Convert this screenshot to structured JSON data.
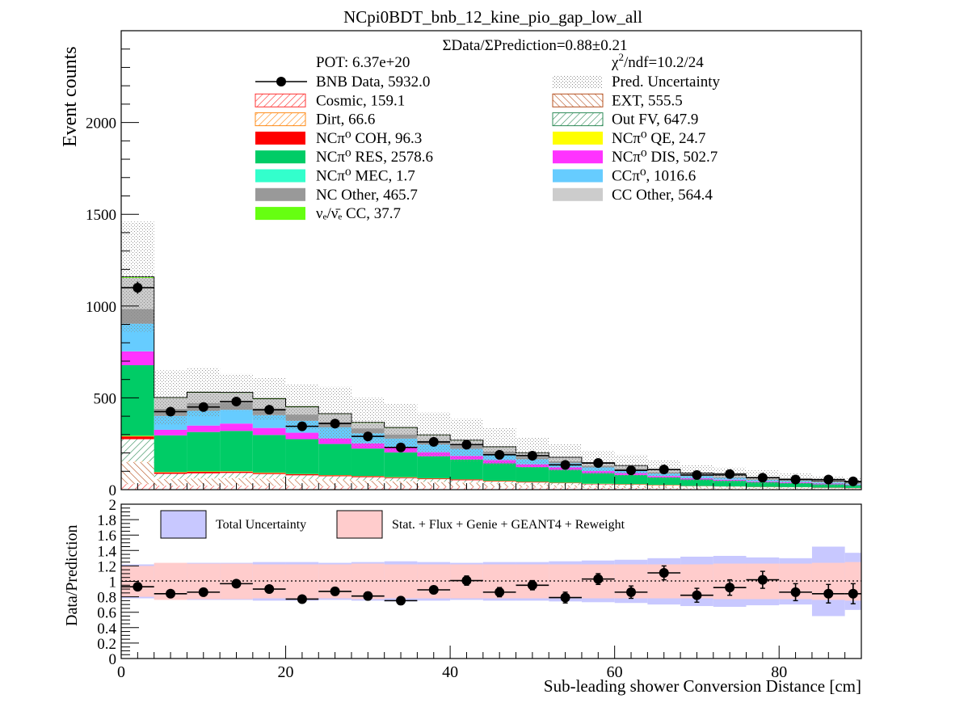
{
  "colors": {
    "cosmic": "#ff3333",
    "ext": "#b5501e",
    "dirt": "#ff8c1a",
    "outfv": "#2e8b57",
    "coh": "#ff0000",
    "qe": "#ffff00",
    "res": "#00cc66",
    "dis": "#ff33ff",
    "mec": "#33ffcc",
    "ccpi0": "#66ccff",
    "ncother": "#999999",
    "ccother": "#cccccc",
    "nuecc": "#66ff11",
    "total_unc": "#c8c8ff",
    "stat_unc": "#ffcccc"
  },
  "chart_data": [
    {
      "type": "bar",
      "title": "NCpi0BDT_bnb_12_kine_pio_gap_low_all",
      "ylabel": "Event counts",
      "xlim": [
        0,
        90
      ],
      "ylim": [
        0,
        2500
      ],
      "yticks": [
        0,
        500,
        1000,
        1500,
        2000
      ],
      "ytick_labels": [
        "0",
        "500",
        "1000",
        "1500",
        "2000"
      ],
      "grid": false,
      "stacked": true,
      "bin_edges": [
        0,
        4,
        8,
        12,
        16,
        20,
        24,
        28,
        32,
        36,
        40,
        44,
        48,
        52,
        56,
        60,
        64,
        68,
        72,
        76,
        80,
        84,
        88,
        90
      ],
      "header_text": {
        "ratio": "ΣData/ΣPrediction=0.88±0.21",
        "pot": "POT: 6.37e+20",
        "chi2_prefix": "χ",
        "chi2_sup": "2",
        "chi2_rest": "/ndf=10.2/24"
      },
      "legend": {
        "placement": "top",
        "left": [
          {
            "key": "data",
            "label": "BNB Data, 5932.0",
            "style": "marker"
          },
          {
            "key": "cosmic",
            "label": "Cosmic, 159.1",
            "style": "hatch"
          },
          {
            "key": "dirt",
            "label": "Dirt, 66.6",
            "style": "hatch"
          },
          {
            "key": "coh",
            "label": "NCπ⁰ COH,  96.3",
            "style": "fill"
          },
          {
            "key": "res",
            "label": "NCπ⁰ RES,  2578.6",
            "style": "fill"
          },
          {
            "key": "mec",
            "label": "NCπ⁰ MEC,  1.7",
            "style": "fill"
          },
          {
            "key": "ncother",
            "label": "NC Other, 465.7",
            "style": "fill"
          },
          {
            "key": "nuecc",
            "label": "νₑ/ν̄ₑ CC, 37.7",
            "style": "fill"
          }
        ],
        "right": [
          {
            "key": "pred_unc",
            "label": "Pred. Uncertainty",
            "style": "dots"
          },
          {
            "key": "ext",
            "label": "EXT, 555.5",
            "style": "hatch"
          },
          {
            "key": "outfv",
            "label": "Out FV, 647.9",
            "style": "hatch"
          },
          {
            "key": "qe",
            "label": "NCπ⁰ QE,  24.7",
            "style": "fill"
          },
          {
            "key": "dis",
            "label": "NCπ⁰ DIS,  502.7",
            "style": "fill"
          },
          {
            "key": "ccpi0",
            "label": "CCπ⁰, 1016.6",
            "style": "fill"
          },
          {
            "key": "ccother",
            "label": "CC Other, 564.4",
            "style": "fill"
          }
        ]
      },
      "series": [
        {
          "key": "cosmic",
          "name": "Cosmic",
          "values": [
            30,
            22,
            22,
            22,
            21,
            20,
            19,
            18,
            17,
            16,
            15,
            13,
            12,
            11,
            10,
            9,
            8,
            7,
            6,
            5,
            5,
            4,
            3
          ]
        },
        {
          "key": "ext",
          "name": "EXT",
          "values": [
            120,
            35,
            38,
            40,
            38,
            35,
            33,
            30,
            28,
            25,
            22,
            18,
            15,
            13,
            11,
            10,
            8,
            6,
            5,
            4,
            3,
            2,
            2
          ]
        },
        {
          "key": "dirt",
          "name": "Dirt",
          "values": [
            5,
            4,
            4,
            4,
            4,
            3,
            3,
            3,
            3,
            3,
            3,
            3,
            3,
            3,
            2,
            2,
            2,
            2,
            2,
            2,
            2,
            2,
            1
          ]
        },
        {
          "key": "outfv",
          "name": "Out FV",
          "values": [
            120,
            25,
            25,
            25,
            22,
            20,
            18,
            17,
            15,
            13,
            11,
            10,
            9,
            8,
            6,
            6,
            5,
            4,
            4,
            3,
            3,
            2,
            2
          ]
        },
        {
          "key": "coh",
          "name": "NCπ⁰ COH",
          "values": [
            15,
            8,
            8,
            7,
            6,
            6,
            5,
            5,
            4,
            4,
            4,
            3,
            3,
            2,
            2,
            2,
            2,
            1,
            1,
            1,
            1,
            1,
            1
          ]
        },
        {
          "key": "qe",
          "name": "NCπ⁰ QE",
          "values": [
            3,
            2,
            2,
            2,
            2,
            1,
            1,
            1,
            1,
            1,
            1,
            1,
            1,
            1,
            1,
            1,
            1,
            0,
            0,
            0,
            0,
            0,
            0
          ]
        },
        {
          "key": "res",
          "name": "NCπ⁰ RES",
          "values": [
            385,
            200,
            215,
            220,
            205,
            190,
            170,
            150,
            135,
            120,
            108,
            95,
            80,
            70,
            58,
            50,
            40,
            35,
            30,
            25,
            22,
            18,
            15
          ]
        },
        {
          "key": "dis",
          "name": "NCπ⁰ DIS",
          "values": [
            75,
            30,
            35,
            40,
            38,
            35,
            30,
            28,
            25,
            22,
            20,
            18,
            15,
            13,
            11,
            10,
            8,
            7,
            6,
            5,
            4,
            4,
            3
          ]
        },
        {
          "key": "mec",
          "name": "NCπ⁰ MEC",
          "values": [
            1,
            0,
            0,
            0,
            0,
            0,
            0,
            0,
            0,
            0,
            0,
            0,
            0,
            0,
            0,
            0,
            0,
            0,
            0,
            0,
            0,
            0,
            0
          ]
        },
        {
          "key": "ccpi0",
          "name": "CCπ⁰",
          "values": [
            150,
            75,
            80,
            75,
            70,
            65,
            60,
            55,
            50,
            42,
            38,
            32,
            28,
            23,
            20,
            17,
            14,
            12,
            10,
            8,
            7,
            6,
            5
          ]
        },
        {
          "key": "ncother",
          "name": "NC Other",
          "values": [
            80,
            40,
            42,
            40,
            37,
            34,
            30,
            27,
            23,
            20,
            18,
            15,
            13,
            11,
            9,
            8,
            7,
            6,
            5,
            4,
            4,
            3,
            3
          ]
        },
        {
          "key": "ccother",
          "name": "CC Other",
          "values": [
            170,
            58,
            57,
            52,
            50,
            40,
            42,
            30,
            35,
            30,
            28,
            24,
            20,
            19,
            16,
            15,
            13,
            9,
            8,
            8,
            6,
            5,
            4
          ]
        },
        {
          "key": "nuecc",
          "name": "νₑ/ν̄ₑ CC",
          "values": [
            6,
            3,
            3,
            3,
            3,
            3,
            3,
            3,
            3,
            2,
            2,
            2,
            2,
            2,
            1,
            1,
            1,
            1,
            1,
            1,
            1,
            1,
            1
          ]
        }
      ],
      "pred_unc_top": [
        1460,
        650,
        665,
        630,
        610,
        575,
        560,
        500,
        470,
        420,
        385,
        335,
        285,
        250,
        210,
        190,
        160,
        135,
        120,
        105,
        90,
        75,
        65
      ],
      "data": {
        "name": "BNB Data",
        "x": [
          2,
          6,
          10,
          14,
          18,
          22,
          26,
          30,
          34,
          38,
          42,
          46,
          50,
          54,
          58,
          62,
          66,
          70,
          74,
          78,
          82,
          86,
          89
        ],
        "xerr": [
          2,
          2,
          2,
          2,
          2,
          2,
          2,
          2,
          2,
          2,
          2,
          2,
          2,
          2,
          2,
          2,
          2,
          2,
          2,
          2,
          2,
          2,
          1
        ],
        "y": [
          1100,
          425,
          450,
          480,
          435,
          345,
          360,
          290,
          230,
          260,
          245,
          190,
          185,
          135,
          145,
          105,
          110,
          80,
          85,
          65,
          55,
          55,
          45
        ],
        "yerr": [
          33,
          21,
          21,
          22,
          21,
          19,
          19,
          17,
          15,
          16,
          16,
          14,
          14,
          12,
          12,
          10,
          10,
          9,
          9,
          8,
          7,
          7,
          7
        ]
      }
    },
    {
      "type": "line",
      "xlabel": "Sub-leading shower Conversion Distance [cm]",
      "ylabel": "Data/Prediction",
      "xlim": [
        0,
        90
      ],
      "ylim": [
        0,
        2
      ],
      "xticks": [
        0,
        20,
        40,
        60,
        80
      ],
      "xtick_labels": [
        "0",
        "20",
        "40",
        "60",
        "80"
      ],
      "yticks": [
        0,
        0.2,
        0.4,
        0.6,
        0.8,
        1,
        1.2,
        1.4,
        1.6,
        1.8,
        2
      ],
      "ytick_labels": [
        "0",
        "0.2",
        "0.4",
        "0.6",
        "0.8",
        "1",
        "1.2",
        "1.4",
        "1.6",
        "1.8",
        "2"
      ],
      "grid": false,
      "legend": [
        {
          "key": "total_unc",
          "label": "Total Uncertainty"
        },
        {
          "key": "stat_unc",
          "label": "Stat. + Flux + Genie + GEANT4 + Reweight"
        }
      ],
      "bin_edges": [
        0,
        4,
        8,
        12,
        16,
        20,
        24,
        28,
        32,
        36,
        40,
        44,
        48,
        52,
        56,
        60,
        64,
        68,
        72,
        76,
        80,
        84,
        88,
        90
      ],
      "total_unc_half_width": [
        0.22,
        0.23,
        0.24,
        0.24,
        0.25,
        0.25,
        0.24,
        0.25,
        0.26,
        0.25,
        0.24,
        0.25,
        0.25,
        0.26,
        0.27,
        0.28,
        0.3,
        0.32,
        0.33,
        0.31,
        0.3,
        0.45,
        0.37
      ],
      "syst_unc_half_width": [
        0.2,
        0.24,
        0.23,
        0.23,
        0.22,
        0.22,
        0.22,
        0.23,
        0.22,
        0.22,
        0.22,
        0.22,
        0.22,
        0.22,
        0.22,
        0.22,
        0.22,
        0.22,
        0.23,
        0.23,
        0.23,
        0.24,
        0.25
      ],
      "reference_line": 1,
      "data": {
        "x": [
          2,
          6,
          10,
          14,
          18,
          22,
          26,
          30,
          34,
          38,
          42,
          46,
          50,
          54,
          58,
          62,
          66,
          70,
          74,
          78,
          82,
          86,
          89
        ],
        "xerr": [
          2,
          2,
          2,
          2,
          2,
          2,
          2,
          2,
          2,
          2,
          2,
          2,
          2,
          2,
          2,
          2,
          2,
          2,
          2,
          2,
          2,
          2,
          1
        ],
        "y": [
          0.93,
          0.84,
          0.86,
          0.97,
          0.9,
          0.77,
          0.87,
          0.81,
          0.75,
          0.89,
          1.01,
          0.86,
          0.95,
          0.79,
          1.03,
          0.86,
          1.11,
          0.82,
          0.92,
          1.02,
          0.86,
          0.84,
          0.84
        ],
        "yerr": [
          0.04,
          0.04,
          0.04,
          0.04,
          0.04,
          0.04,
          0.05,
          0.05,
          0.05,
          0.05,
          0.06,
          0.06,
          0.06,
          0.07,
          0.07,
          0.08,
          0.09,
          0.09,
          0.1,
          0.11,
          0.11,
          0.12,
          0.13
        ]
      }
    }
  ]
}
